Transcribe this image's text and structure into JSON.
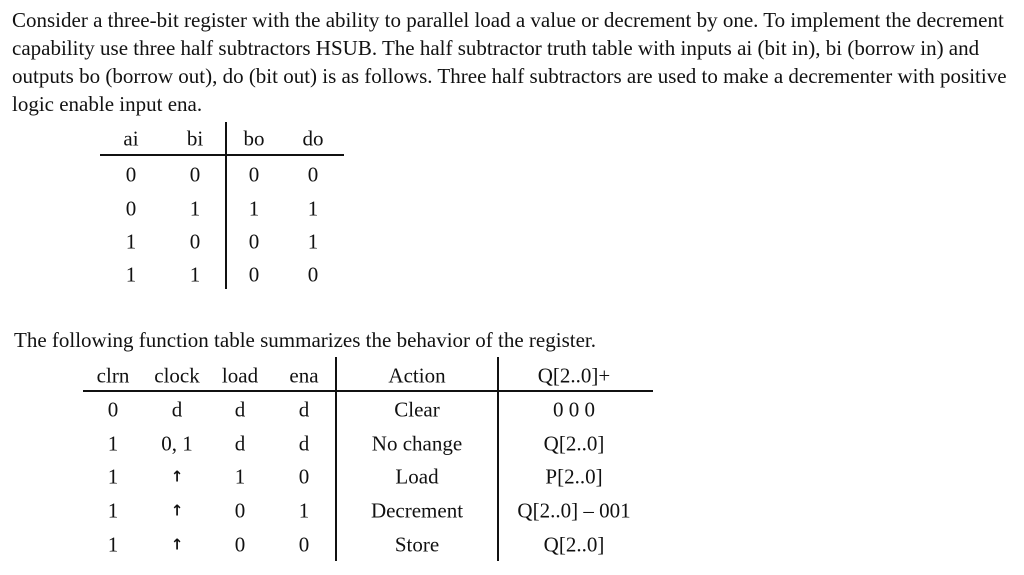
{
  "intro": "Consider a three-bit register with the ability to parallel load a value or decrement by one. To implement the decrement capability use three half subtractors HSUB. The half subtractor truth table with inputs ai (bit in), bi (borrow in) and outputs bo (borrow out), do (bit out) is as follows. Three half subtractors are used to make a decrementer with positive logic enable input ena.",
  "truth_table": {
    "headers": [
      "ai",
      "bi",
      "bo",
      "do"
    ],
    "rows": [
      [
        "0",
        "0",
        "0",
        "0"
      ],
      [
        "0",
        "1",
        "1",
        "1"
      ],
      [
        "1",
        "0",
        "0",
        "1"
      ],
      [
        "1",
        "1",
        "0",
        "0"
      ]
    ]
  },
  "function_intro": "The following function table summarizes the behavior of the register.",
  "function_table": {
    "headers": [
      "clrn",
      "clock",
      "load",
      "ena",
      "Action",
      "Q[2..0]+"
    ],
    "rows": [
      [
        "0",
        "d",
        "d",
        "d",
        "Clear",
        "0 0 0"
      ],
      [
        "1",
        "0, 1",
        "d",
        "d",
        "No change",
        "Q[2..0]"
      ],
      [
        "1",
        "↑",
        "1",
        "0",
        "Load",
        "P[2..0]"
      ],
      [
        "1",
        "↑",
        "0",
        "1",
        "Decrement",
        "Q[2..0] – 001"
      ],
      [
        "1",
        "↑",
        "0",
        "0",
        "Store",
        "Q[2..0]"
      ]
    ]
  }
}
